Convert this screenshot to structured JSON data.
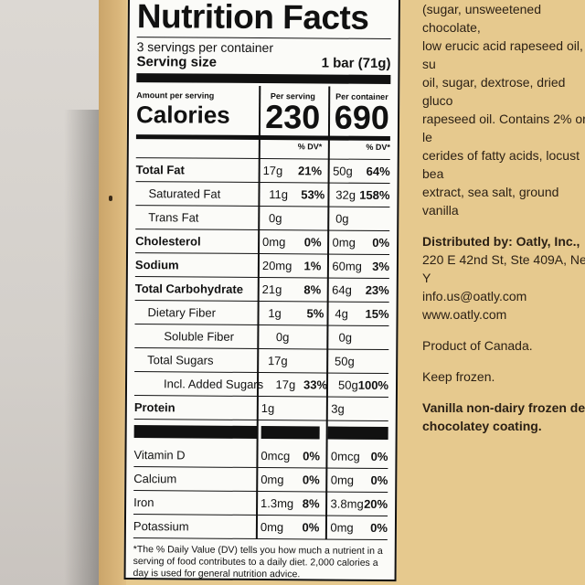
{
  "label": {
    "title": "Nutrition Facts",
    "servings": "3 servings per container",
    "serving_size_label": "Serving size",
    "serving_size_value": "1 bar (71g)",
    "amount_per_serving": "Amount per serving",
    "calories_label": "Calories",
    "per_serving_label": "Per serving",
    "per_container_label": "Per container",
    "calories_serving": "230",
    "calories_container": "690",
    "dv_label": "% DV*",
    "nutrients": [
      {
        "name": "Total Fat",
        "amt1": "17g",
        "dv1": "21%",
        "amt2": "50g",
        "dv2": "64%"
      },
      {
        "name": "Saturated Fat",
        "amt1": "11g",
        "dv1": "53%",
        "amt2": "32g",
        "dv2": "158%"
      },
      {
        "name": "Trans Fat",
        "amt1": "0g",
        "dv1": "",
        "amt2": "0g",
        "dv2": ""
      },
      {
        "name": "Cholesterol",
        "amt1": "0mg",
        "dv1": "0%",
        "amt2": "0mg",
        "dv2": "0%"
      },
      {
        "name": "Sodium",
        "amt1": "20mg",
        "dv1": "1%",
        "amt2": "60mg",
        "dv2": "3%"
      },
      {
        "name": "Total Carbohydrate",
        "amt1": "21g",
        "dv1": "8%",
        "amt2": "64g",
        "dv2": "23%"
      },
      {
        "name": "Dietary Fiber",
        "amt1": "1g",
        "dv1": "5%",
        "amt2": "4g",
        "dv2": "15%"
      },
      {
        "name": "Soluble Fiber",
        "amt1": "0g",
        "dv1": "",
        "amt2": "0g",
        "dv2": ""
      },
      {
        "name": "Total Sugars",
        "amt1": "17g",
        "dv1": "",
        "amt2": "50g",
        "dv2": ""
      },
      {
        "name": "Incl. Added Sugars",
        "amt1": "17g",
        "dv1": "33%",
        "amt2": "50g",
        "dv2": "100%"
      },
      {
        "name": "Protein",
        "amt1": "1g",
        "dv1": "",
        "amt2": "3g",
        "dv2": ""
      }
    ],
    "vitamins": [
      {
        "name": "Vitamin D",
        "amt1": "0mcg",
        "dv1": "0%",
        "amt2": "0mcg",
        "dv2": "0%"
      },
      {
        "name": "Calcium",
        "amt1": "0mg",
        "dv1": "0%",
        "amt2": "0mg",
        "dv2": "0%"
      },
      {
        "name": "Iron",
        "amt1": "1.3mg",
        "dv1": "8%",
        "amt2": "3.8mg",
        "dv2": "20%"
      },
      {
        "name": "Potassium",
        "amt1": "0mg",
        "dv1": "0%",
        "amt2": "0mg",
        "dv2": "0%"
      }
    ],
    "footnote": "*The % Daily Value (DV) tells you how much a nutrient in a serving of food contributes to a daily diet. 2,000 calories a day is used for general nutrition advice."
  },
  "side_text": {
    "ingredients_lines": [
      "(sugar, unsweetened chocolate,",
      "low erucic acid rapeseed oil, su",
      "oil, sugar, dextrose, dried gluco",
      "rapeseed oil. Contains 2% or le",
      "cerides of fatty acids, locust bea",
      "extract, sea salt, ground vanilla"
    ],
    "distributed_label": "Distributed by: Oatly, Inc.,",
    "address": "220 E 42nd St, Ste 409A, New Y",
    "email": "info.us@oatly.com",
    "website": "www.oatly.com",
    "origin": "Product of Canada.",
    "storage": "Keep frozen.",
    "description_lines": [
      "Vanilla non-dairy frozen des",
      "chocolatey coating."
    ]
  }
}
